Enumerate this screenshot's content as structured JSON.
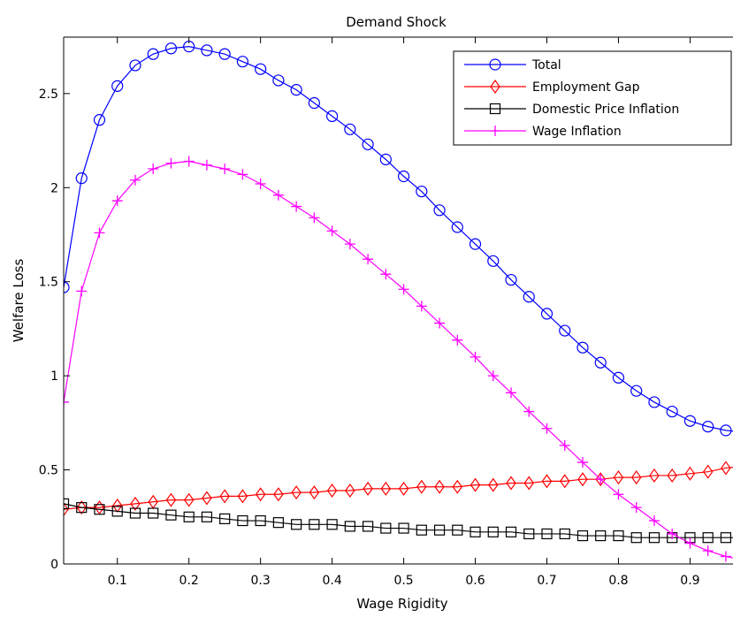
{
  "chart_data": {
    "type": "line",
    "title": "Demand Shock",
    "xlabel": "Wage Rigidity",
    "ylabel": "Welfare Loss",
    "xlim": [
      0.025,
      0.96
    ],
    "ylim": [
      0,
      2.8
    ],
    "xticks": [
      0.1,
      0.2,
      0.3,
      0.4,
      0.5,
      0.6,
      0.7,
      0.8,
      0.9
    ],
    "xtick_labels": [
      "0.1",
      "0.2",
      "0.3",
      "0.4",
      "0.5",
      "0.6",
      "0.7",
      "0.8",
      "0.9"
    ],
    "yticks": [
      0,
      0.5,
      1,
      1.5,
      2,
      2.5
    ],
    "ytick_labels": [
      "0",
      "0.5",
      "1",
      "1.5",
      "2",
      "2.5"
    ],
    "grid": false,
    "legend_position": "top-right",
    "x": [
      0.025,
      0.05,
      0.075,
      0.1,
      0.125,
      0.15,
      0.175,
      0.2,
      0.225,
      0.25,
      0.275,
      0.3,
      0.325,
      0.35,
      0.375,
      0.4,
      0.425,
      0.45,
      0.475,
      0.5,
      0.525,
      0.55,
      0.575,
      0.6,
      0.625,
      0.65,
      0.675,
      0.7,
      0.725,
      0.75,
      0.775,
      0.8,
      0.825,
      0.85,
      0.875,
      0.9,
      0.925,
      0.95,
      0.975
    ],
    "series": [
      {
        "name": "Total",
        "color": "#0000ff",
        "marker": "circle",
        "values": [
          1.47,
          2.05,
          2.36,
          2.54,
          2.65,
          2.71,
          2.74,
          2.75,
          2.73,
          2.71,
          2.67,
          2.63,
          2.57,
          2.52,
          2.45,
          2.38,
          2.31,
          2.23,
          2.15,
          2.06,
          1.98,
          1.88,
          1.79,
          1.7,
          1.61,
          1.51,
          1.42,
          1.33,
          1.24,
          1.15,
          1.07,
          0.99,
          0.92,
          0.86,
          0.81,
          0.76,
          0.73,
          0.71,
          0.7
        ]
      },
      {
        "name": "Employment Gap",
        "color": "#ff0000",
        "marker": "diamond",
        "values": [
          0.29,
          0.3,
          0.3,
          0.31,
          0.32,
          0.33,
          0.34,
          0.34,
          0.35,
          0.36,
          0.36,
          0.37,
          0.37,
          0.38,
          0.38,
          0.39,
          0.39,
          0.4,
          0.4,
          0.4,
          0.41,
          0.41,
          0.41,
          0.42,
          0.42,
          0.43,
          0.43,
          0.44,
          0.44,
          0.45,
          0.45,
          0.46,
          0.46,
          0.47,
          0.47,
          0.48,
          0.49,
          0.51,
          0.52
        ]
      },
      {
        "name": "Domestic Price Inflation",
        "color": "#000000",
        "marker": "square",
        "values": [
          0.32,
          0.3,
          0.29,
          0.28,
          0.27,
          0.27,
          0.26,
          0.25,
          0.25,
          0.24,
          0.23,
          0.23,
          0.22,
          0.21,
          0.21,
          0.21,
          0.2,
          0.2,
          0.19,
          0.19,
          0.18,
          0.18,
          0.18,
          0.17,
          0.17,
          0.17,
          0.16,
          0.16,
          0.16,
          0.15,
          0.15,
          0.15,
          0.14,
          0.14,
          0.14,
          0.14,
          0.14,
          0.14,
          0.14
        ]
      },
      {
        "name": "Wage Inflation",
        "color": "#ff00ff",
        "marker": "plus",
        "values": [
          0.86,
          1.45,
          1.76,
          1.93,
          2.04,
          2.1,
          2.13,
          2.14,
          2.12,
          2.1,
          2.07,
          2.02,
          1.96,
          1.9,
          1.84,
          1.77,
          1.7,
          1.62,
          1.54,
          1.46,
          1.37,
          1.28,
          1.19,
          1.1,
          1.0,
          0.91,
          0.81,
          0.72,
          0.63,
          0.54,
          0.45,
          0.37,
          0.3,
          0.23,
          0.16,
          0.11,
          0.07,
          0.04,
          0.02
        ]
      }
    ]
  }
}
